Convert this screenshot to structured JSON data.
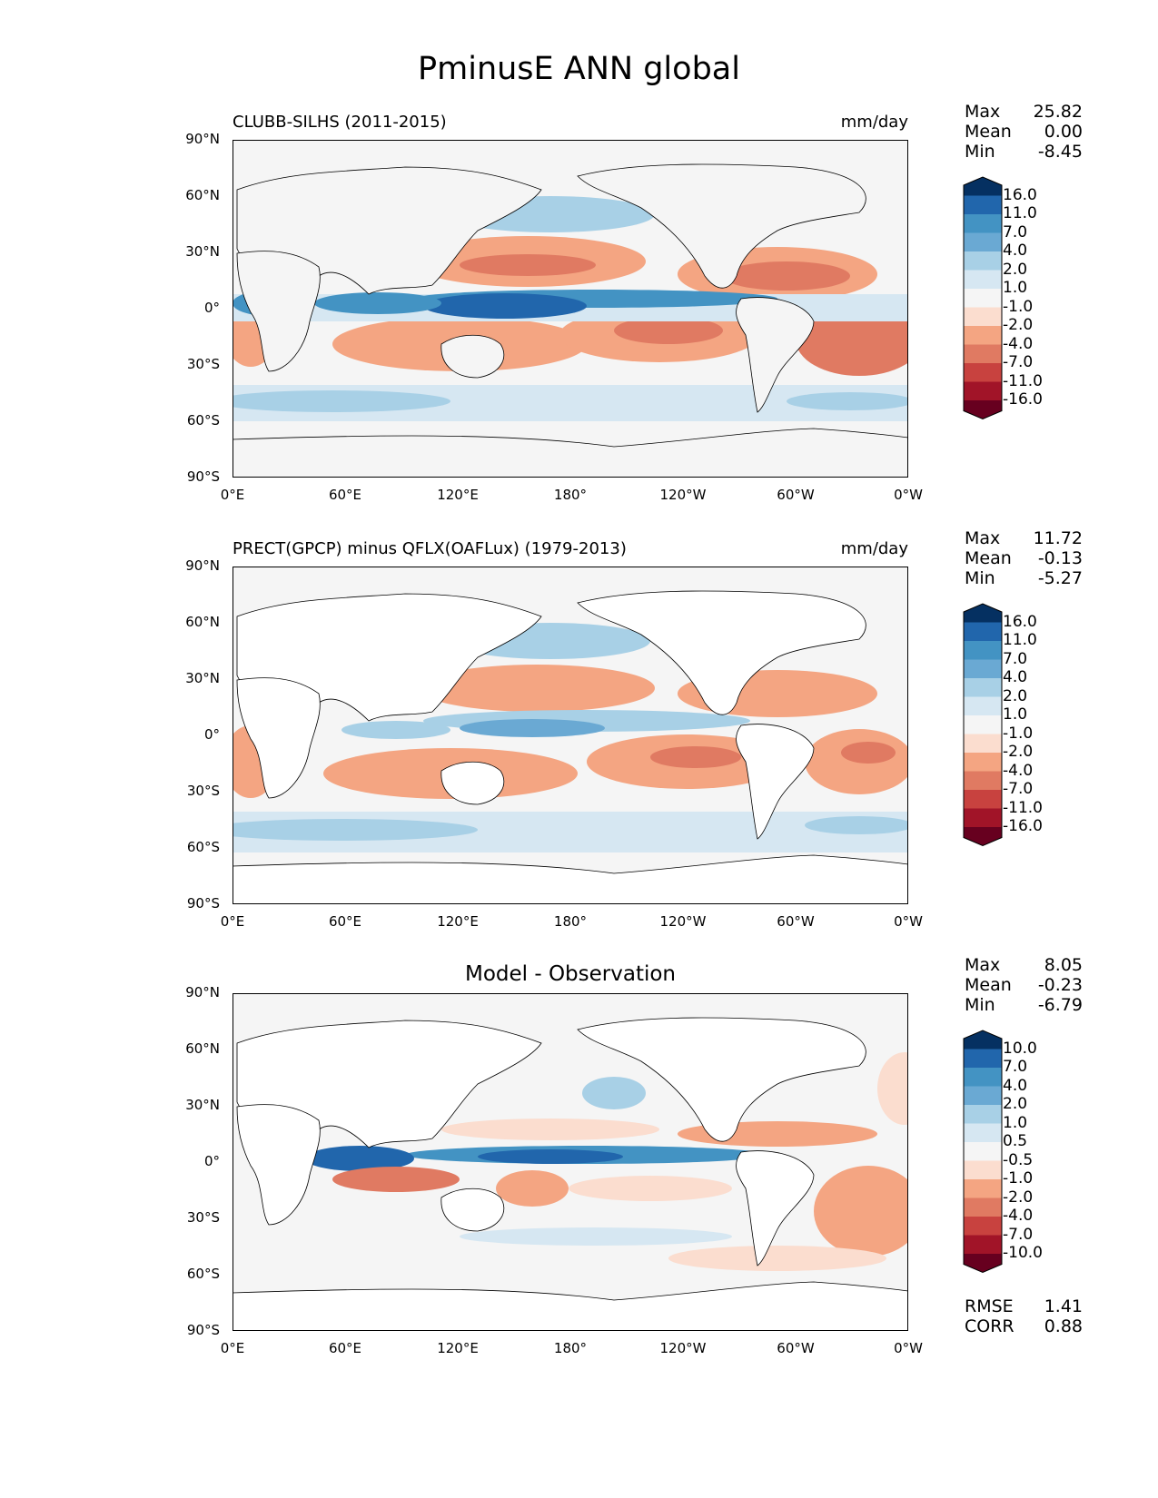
{
  "figure": {
    "title": "PminusE ANN global"
  },
  "axes": {
    "lat_ticks": [
      "90°N",
      "60°N",
      "30°N",
      "0°",
      "30°S",
      "60°S",
      "90°S"
    ],
    "lon_ticks": [
      "0°E",
      "60°E",
      "120°E",
      "180°",
      "120°W",
      "60°W",
      "0°W"
    ]
  },
  "panels": [
    {
      "title_left": "CLUBB-SILHS (2011-2015)",
      "title_right": "mm/day",
      "stats": [
        {
          "label": "Max",
          "value": "25.82"
        },
        {
          "label": "Mean",
          "value": "0.00"
        },
        {
          "label": "Min",
          "value": "-8.45"
        }
      ],
      "colorbar": [
        "16.0",
        "11.0",
        "7.0",
        "4.0",
        "2.0",
        "1.0",
        "-1.0",
        "-2.0",
        "-4.0",
        "-7.0",
        "-11.0",
        "-16.0"
      ]
    },
    {
      "title_left": "PRECT(GPCP) minus QFLX(OAFLux) (1979-2013)",
      "title_right": "mm/day",
      "stats": [
        {
          "label": "Max",
          "value": "11.72"
        },
        {
          "label": "Mean",
          "value": "-0.13"
        },
        {
          "label": "Min",
          "value": "-5.27"
        }
      ],
      "colorbar": [
        "16.0",
        "11.0",
        "7.0",
        "4.0",
        "2.0",
        "1.0",
        "-1.0",
        "-2.0",
        "-4.0",
        "-7.0",
        "-11.0",
        "-16.0"
      ]
    },
    {
      "title_center": "Model - Observation",
      "stats": [
        {
          "label": "Max",
          "value": "8.05"
        },
        {
          "label": "Mean",
          "value": "-0.23"
        },
        {
          "label": "Min",
          "value": "-6.79"
        }
      ],
      "colorbar": [
        "10.0",
        "7.0",
        "4.0",
        "2.0",
        "1.0",
        "0.5",
        "-0.5",
        "-1.0",
        "-2.0",
        "-4.0",
        "-7.0",
        "-10.0"
      ],
      "metrics": [
        {
          "label": "RMSE",
          "value": "1.41"
        },
        {
          "label": "CORR",
          "value": "0.88"
        }
      ]
    }
  ],
  "colors": {
    "scale": [
      "#053061",
      "#2166ac",
      "#4393c3",
      "#6aa9d3",
      "#a8d0e6",
      "#d6e7f2",
      "#f5f5f5",
      "#fbddcf",
      "#f4a582",
      "#e07a62",
      "#c8423f",
      "#a11428",
      "#67001f"
    ],
    "land": "#ffffff",
    "ocean_neutral": "#f5f5f5"
  }
}
